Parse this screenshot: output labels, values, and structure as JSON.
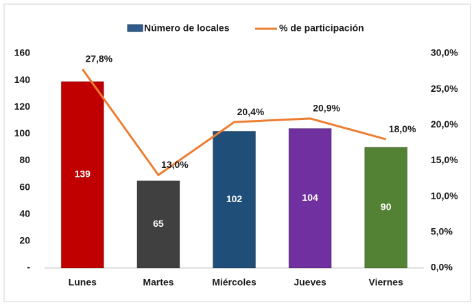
{
  "chart_data": {
    "type": "bar",
    "categories": [
      "Lunes",
      "Martes",
      "Miércoles",
      "Jueves",
      "Viernes"
    ],
    "series": [
      {
        "name": "Número de locales",
        "type": "bar",
        "color": "#2e5b8a",
        "colors": [
          "#c00000",
          "#404040",
          "#1f4e79",
          "#7030a0",
          "#548235"
        ],
        "values": [
          139,
          65,
          102,
          104,
          90
        ]
      },
      {
        "name": "% de participación",
        "type": "line",
        "axis": "y2",
        "color": "#ed7d31",
        "values": [
          27.8,
          13.0,
          20.4,
          20.9,
          18.0
        ],
        "value_labels": [
          "27,8%",
          "13,0%",
          "20,4%",
          "20,9%",
          "18,0%"
        ]
      }
    ],
    "ylim": [
      0,
      160
    ],
    "yticks": [
      {
        "value": 0,
        "label": "-"
      },
      20,
      40,
      60,
      80,
      100,
      120,
      140,
      160
    ],
    "y2lim": [
      0,
      30
    ],
    "y2ticks": [
      {
        "value": 0,
        "label": "0,0%"
      },
      {
        "value": 5,
        "label": "5,0%"
      },
      {
        "value": 10,
        "label": "10,0%"
      },
      {
        "value": 15,
        "label": "15,0%"
      },
      {
        "value": 20,
        "label": "20,0%"
      },
      {
        "value": 25,
        "label": "25,0%"
      },
      {
        "value": 30,
        "label": "30,0%"
      }
    ],
    "grid": false,
    "legend": "top"
  }
}
